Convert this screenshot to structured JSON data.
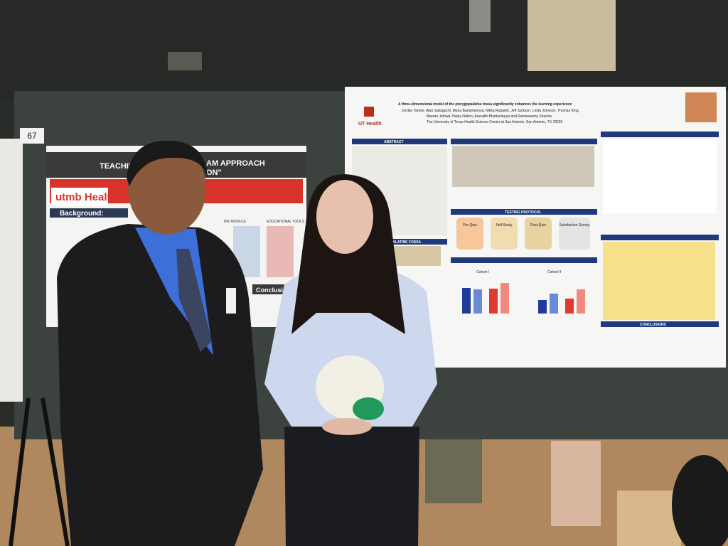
{
  "scene": {
    "booth_number": "67",
    "left_poster": {
      "title_left": "TEACHIN",
      "title_right": "AM APPROACH",
      "title_right2": "ON\"",
      "logo": "utmb Health",
      "section": "Background:",
      "column_headers": [
        "IPE MODULE",
        "EDUCATIONAL TOOLS"
      ],
      "conclusion": "Conclusion"
    },
    "right_poster": {
      "institution": "UT Health",
      "title": "A three-dimensional model of the pterygopalatine fossa significantly enhances the learning experience",
      "authors_1": "Jordan Tanner, Alan Sakaguchi, Maria Bartamanova, Nikita Rupareli, Jeff Jackson, Linda Johnson, Thomas King,",
      "authors_2": "Beeran Jethwa, Haley Nation, Arunabh Bhattacharya and Ramaswamy Sharma",
      "affiliation": "The University of Texas Health Science Center at San Antonio, San Antonio, TX 78229",
      "sections": [
        "ABSTRACT",
        "TESTING PROTOCOL",
        "PTERYGOPALATINE FOSSA",
        "CONCLUSIONS"
      ],
      "protocol_steps": [
        "Pre-Quiz",
        "Self-Study",
        "Post-Quiz",
        "Satisfaction Survey"
      ],
      "chart_titles": [
        "Cohort I",
        "Cohort II"
      ]
    }
  }
}
